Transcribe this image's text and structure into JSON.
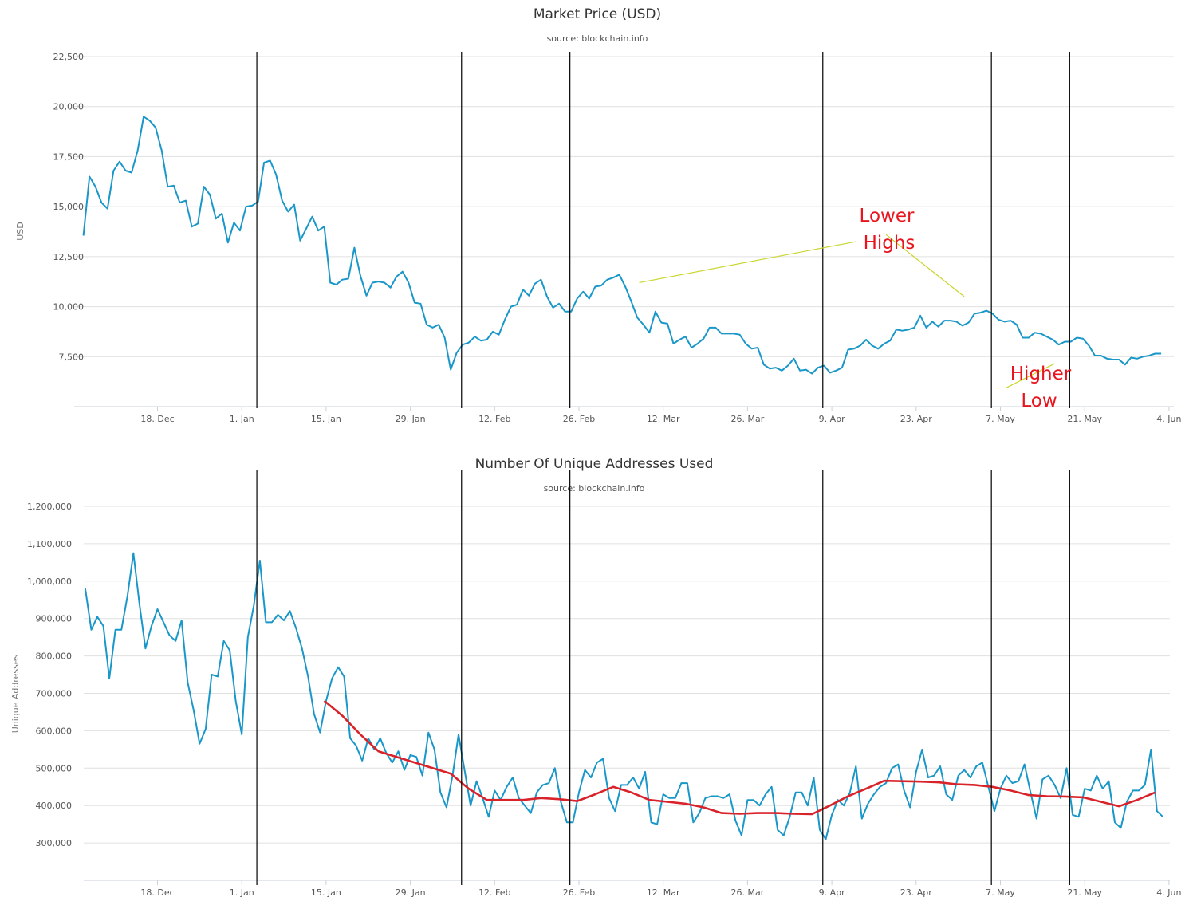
{
  "chart_data": [
    {
      "type": "line",
      "title": "Market Price (USD)",
      "subtitle": "source: blockchain.info",
      "ylabel": "USD",
      "xlabel": "",
      "ylim": [
        5000,
        22500
      ],
      "y_ticks": [
        7500,
        10000,
        12500,
        15000,
        17500,
        20000,
        22500
      ],
      "y_tick_labels": [
        "7,500",
        "10,000",
        "12,500",
        "15,000",
        "17,500",
        "20,000",
        "22,500"
      ],
      "x_range_days": [
        -18,
        201
      ],
      "x_ticks": [
        {
          "label": "18. Dec",
          "day": 0
        },
        {
          "label": "1. Jan",
          "day": 14
        },
        {
          "label": "15. Jan",
          "day": 28
        },
        {
          "label": "29. Jan",
          "day": 42
        },
        {
          "label": "12. Feb",
          "day": 56
        },
        {
          "label": "26. Feb",
          "day": 70
        },
        {
          "label": "12. Mar",
          "day": 84
        },
        {
          "label": "26. Mar",
          "day": 98
        },
        {
          "label": "9. Apr",
          "day": 112
        },
        {
          "label": "23. Apr",
          "day": 126
        },
        {
          "label": "7. May",
          "day": 140
        },
        {
          "label": "21. May",
          "day": 154
        },
        {
          "label": "4. Jun",
          "day": 168
        }
      ],
      "grid": true,
      "legend": "none",
      "series": [
        {
          "color": "#1a97c9",
          "days": [
            -12.3,
            -11.3,
            -10.3,
            -9.3,
            -8.3,
            -7.3,
            -6.3,
            -5.3,
            -4.3,
            -3.3,
            -2.3,
            -1.3,
            -0.3,
            0.7,
            1.7,
            2.7,
            3.7,
            4.7,
            5.7,
            6.7,
            7.7,
            8.7,
            9.7,
            10.7,
            11.7,
            12.7,
            13.7,
            14.7,
            15.7,
            16.7,
            17.7,
            18.7,
            19.7,
            20.7,
            21.7,
            22.7,
            23.7,
            24.7,
            25.7,
            26.7,
            27.7,
            28.7,
            29.7,
            30.7,
            31.7,
            32.7,
            33.7,
            34.7,
            35.7,
            36.7,
            37.7,
            38.7,
            39.7,
            40.7,
            41.7,
            42.7,
            43.7,
            44.7,
            45.7,
            46.7,
            47.7,
            48.7,
            49.7,
            50.7,
            51.7,
            52.7,
            53.7,
            54.7,
            55.7,
            56.7,
            57.7,
            58.7,
            59.7,
            60.7,
            61.7,
            62.7,
            63.7,
            64.7,
            65.7,
            66.7,
            67.7,
            68.7,
            69.7,
            70.7,
            71.7,
            72.7,
            73.7,
            74.7,
            75.7,
            76.7,
            77.7,
            78.7,
            79.7,
            80.7,
            81.7,
            82.7,
            83.7,
            84.7,
            85.7,
            86.7,
            87.7,
            88.7,
            89.7,
            90.7,
            91.7,
            92.7,
            93.7,
            94.7,
            95.7,
            96.7,
            97.7,
            98.7,
            99.7,
            100.7,
            101.7,
            102.7,
            103.7,
            104.7,
            105.7,
            106.7,
            107.7,
            108.7,
            109.7,
            110.7,
            111.7,
            112.7,
            113.7,
            114.7,
            115.7,
            116.7,
            117.7,
            118.7,
            119.7,
            120.7,
            121.7,
            122.7,
            123.7,
            124.7,
            125.7,
            126.7,
            127.7,
            128.7,
            129.7,
            130.7,
            131.7,
            132.7,
            133.7,
            134.7,
            135.7,
            136.7,
            137.7,
            138.7,
            139.7,
            140.7,
            141.7,
            142.7,
            143.7,
            144.7,
            145.7,
            146.7,
            147.7,
            148.7,
            149.7,
            150.7,
            151.7,
            152.7,
            153.7,
            154.7,
            155.7,
            156.7,
            157.7,
            158.7,
            159.7,
            160.7,
            161.7,
            162.7,
            163.7,
            164.7,
            165.7,
            166.7
          ],
          "values": [
            13550,
            16500,
            16000,
            15200,
            14900,
            16800,
            17250,
            16800,
            16700,
            17800,
            19500,
            19300,
            18950,
            17800,
            16000,
            16050,
            15200,
            15300,
            14000,
            14150,
            16000,
            15600,
            14400,
            14650,
            13200,
            14200,
            13800,
            15000,
            15050,
            15250,
            17200,
            17300,
            16600,
            15300,
            14750,
            15100,
            13300,
            13900,
            14500,
            13800,
            14000,
            11200,
            11100,
            11350,
            11400,
            12950,
            11550,
            10550,
            11200,
            11250,
            11200,
            10950,
            11500,
            11750,
            11200,
            10200,
            10150,
            9100,
            8950,
            9100,
            8450,
            6850,
            7700,
            8100,
            8200,
            8500,
            8300,
            8350,
            8750,
            8600,
            9350,
            10000,
            10100,
            10850,
            10550,
            11150,
            11350,
            10500,
            9950,
            10150,
            9750,
            9750,
            10400,
            10750,
            10400,
            11000,
            11050,
            11350,
            11450,
            11600,
            11000,
            10250,
            9450,
            9100,
            8700,
            9750,
            9200,
            9150,
            8150,
            8350,
            8500,
            7950,
            8150,
            8400,
            8950,
            8950,
            8650,
            8650,
            8650,
            8600,
            8150,
            7900,
            7950,
            7100,
            6900,
            6950,
            6800,
            7050,
            7400,
            6800,
            6850,
            6650,
            6950,
            7050,
            6700,
            6800,
            6950,
            7850,
            7900,
            8050,
            8350,
            8050,
            7900,
            8150,
            8300,
            8850,
            8800,
            8850,
            8950,
            9550,
            8950,
            9250,
            9000,
            9300,
            9300,
            9250,
            9050,
            9200,
            9650,
            9700,
            9800,
            9650,
            9350,
            9250,
            9300,
            9100,
            8450,
            8450,
            8700,
            8650,
            8500,
            8350,
            8100,
            8250,
            8250,
            8450,
            8400,
            8050,
            7550,
            7550,
            7400,
            7350,
            7350,
            7100,
            7450,
            7400,
            7500,
            7550,
            7650,
            7650
          ]
        }
      ],
      "vertical_lines_days": [
        16.5,
        50.5,
        68.5,
        110.5,
        138.5,
        151.5
      ],
      "annotations": [
        {
          "lines": [
            "Lower",
            "Highs"
          ],
          "color": "#e8141e"
        },
        {
          "lines": [
            "Higher",
            "Low"
          ],
          "color": "#e8141e"
        }
      ],
      "annotation_lines": [
        {
          "color": "#c9d62f",
          "from": {
            "day": 80,
            "value": 11200
          },
          "to": {
            "day": 116,
            "value": 13250
          }
        },
        {
          "color": "#c9d62f",
          "from": {
            "day": 121,
            "value": 13600
          },
          "to": {
            "day": 134,
            "value": 10500
          }
        },
        {
          "color": "#c9d62f",
          "from": {
            "day": 141,
            "value": 5950
          },
          "to": {
            "day": 149,
            "value": 7150
          }
        }
      ]
    },
    {
      "type": "line",
      "title": "Number Of Unique Addresses Used",
      "subtitle": "source: blockchain.info",
      "ylabel": "Unique Addresses",
      "xlabel": "",
      "ylim": [
        200000,
        1200000
      ],
      "y_ticks": [
        300000,
        400000,
        500000,
        600000,
        700000,
        800000,
        900000,
        1000000,
        1100000,
        1200000
      ],
      "y_tick_labels": [
        "300,000",
        "400,000",
        "500,000",
        "600,000",
        "700,000",
        "800,000",
        "900,000",
        "1,000,000",
        "1,100,000",
        "1,200,000"
      ],
      "x_range_days": [
        -18,
        201
      ],
      "x_ticks": [
        {
          "label": "18. Dec",
          "day": 0
        },
        {
          "label": "1. Jan",
          "day": 14
        },
        {
          "label": "15. Jan",
          "day": 28
        },
        {
          "label": "29. Jan",
          "day": 42
        },
        {
          "label": "12. Feb",
          "day": 56
        },
        {
          "label": "26. Feb",
          "day": 70
        },
        {
          "label": "12. Mar",
          "day": 84
        },
        {
          "label": "26. Mar",
          "day": 98
        },
        {
          "label": "9. Apr",
          "day": 112
        },
        {
          "label": "23. Apr",
          "day": 126
        },
        {
          "label": "7. May",
          "day": 140
        },
        {
          "label": "21. May",
          "day": 154
        },
        {
          "label": "4. Jun",
          "day": 168
        }
      ],
      "grid": true,
      "legend": "none",
      "series": [
        {
          "color": "#1a97c9",
          "days": [
            -12,
            -11,
            -10,
            -9,
            -8,
            -7,
            -6,
            -5,
            -4,
            -3,
            -2,
            -1,
            0,
            1,
            2,
            3,
            4,
            5,
            6,
            7,
            8,
            9,
            10,
            11,
            12,
            13,
            14,
            15,
            16,
            17,
            18,
            19,
            20,
            21,
            22,
            23,
            24,
            25,
            26,
            27,
            28,
            29,
            30,
            31,
            32,
            33,
            34,
            35,
            36,
            37,
            38,
            39,
            40,
            41,
            42,
            43,
            44,
            45,
            46,
            47,
            48,
            49,
            50,
            51,
            52,
            53,
            54,
            55,
            56,
            57,
            58,
            59,
            60,
            61,
            62,
            63,
            64,
            65,
            66,
            67,
            68,
            69,
            70,
            71,
            72,
            73,
            74,
            75,
            76,
            77,
            78,
            79,
            80,
            81,
            82,
            83,
            84,
            85,
            86,
            87,
            88,
            89,
            90,
            91,
            92,
            93,
            94,
            95,
            96,
            97,
            98,
            99,
            100,
            101,
            102,
            103,
            104,
            105,
            106,
            107,
            108,
            109,
            110,
            111,
            112,
            113,
            114,
            115,
            116,
            117,
            118,
            119,
            120,
            121,
            122,
            123,
            124,
            125,
            126,
            127,
            128,
            129,
            130,
            131,
            132,
            133,
            134,
            135,
            136,
            137,
            138,
            139,
            140,
            141,
            142,
            143,
            144,
            145,
            146,
            147,
            148,
            149,
            150,
            151,
            152,
            153,
            154,
            155,
            156,
            157,
            158,
            159,
            160,
            161,
            162,
            163,
            164,
            165,
            166,
            167
          ],
          "values": [
            980000,
            870000,
            905000,
            880000,
            740000,
            870000,
            870000,
            960000,
            1075000,
            940000,
            820000,
            880000,
            925000,
            890000,
            855000,
            840000,
            895000,
            730000,
            655000,
            565000,
            605000,
            750000,
            745000,
            840000,
            815000,
            680000,
            590000,
            850000,
            935000,
            1055000,
            890000,
            890000,
            910000,
            895000,
            920000,
            875000,
            820000,
            745000,
            645000,
            595000,
            680000,
            740000,
            770000,
            745000,
            580000,
            560000,
            520000,
            580000,
            550000,
            580000,
            540000,
            515000,
            545000,
            495000,
            535000,
            530000,
            480000,
            595000,
            550000,
            435000,
            395000,
            480000,
            590000,
            495000,
            400000,
            465000,
            420000,
            370000,
            440000,
            415000,
            450000,
            475000,
            420000,
            400000,
            380000,
            435000,
            455000,
            460000,
            500000,
            410000,
            355000,
            355000,
            435000,
            495000,
            475000,
            515000,
            525000,
            420000,
            385000,
            455000,
            455000,
            475000,
            445000,
            490000,
            355000,
            350000,
            430000,
            420000,
            420000,
            460000,
            460000,
            355000,
            380000,
            420000,
            425000,
            425000,
            420000,
            430000,
            360000,
            320000,
            415000,
            415000,
            400000,
            430000,
            450000,
            335000,
            320000,
            370000,
            435000,
            435000,
            400000,
            475000,
            335000,
            310000,
            375000,
            415000,
            400000,
            435000,
            505000,
            365000,
            405000,
            430000,
            450000,
            460000,
            500000,
            510000,
            440000,
            395000,
            490000,
            550000,
            475000,
            480000,
            505000,
            430000,
            415000,
            480000,
            495000,
            475000,
            505000,
            515000,
            450000,
            385000,
            445000,
            480000,
            460000,
            465000,
            510000,
            435000,
            365000,
            470000,
            480000,
            455000,
            420000,
            500000,
            375000,
            370000,
            445000,
            440000,
            480000,
            445000,
            465000,
            355000,
            340000,
            410000,
            440000,
            440000,
            455000,
            550000,
            385000,
            370000
          ]
        },
        {
          "name": "",
          "color": "#d9232b",
          "days": [
            27.7,
            30.7,
            33.7,
            36.7,
            39.7,
            42.7,
            45.7,
            48.7,
            51.7,
            54.7,
            57.7,
            60.7,
            63.7,
            66.7,
            69.7,
            72.7,
            75.7,
            78.7,
            81.7,
            84.7,
            87.7,
            90.7,
            93.7,
            96.7,
            99.7,
            102.7,
            105.7,
            108.7,
            111.7,
            114.7,
            117.7,
            120.7,
            123.7,
            126.7,
            129.7,
            132.7,
            135.7,
            138.7,
            141.7,
            144.7,
            147.7,
            150.7,
            153.7,
            156.7,
            159.7,
            162.7,
            165.7
          ],
          "values": [
            680000,
            640000,
            590000,
            545000,
            530000,
            515000,
            500000,
            485000,
            445000,
            415000,
            415000,
            415000,
            420000,
            417000,
            412000,
            430000,
            450000,
            435000,
            415000,
            410000,
            405000,
            395000,
            380000,
            378000,
            380000,
            380000,
            378000,
            377000,
            400000,
            425000,
            445000,
            466000,
            465000,
            464000,
            462000,
            457000,
            455000,
            450000,
            440000,
            428000,
            425000,
            424000,
            422000,
            410000,
            398000,
            415000,
            435000
          ]
        }
      ],
      "vertical_lines_days": [
        16.5,
        50.5,
        68.5,
        110.5,
        138.5,
        151.5
      ]
    }
  ]
}
